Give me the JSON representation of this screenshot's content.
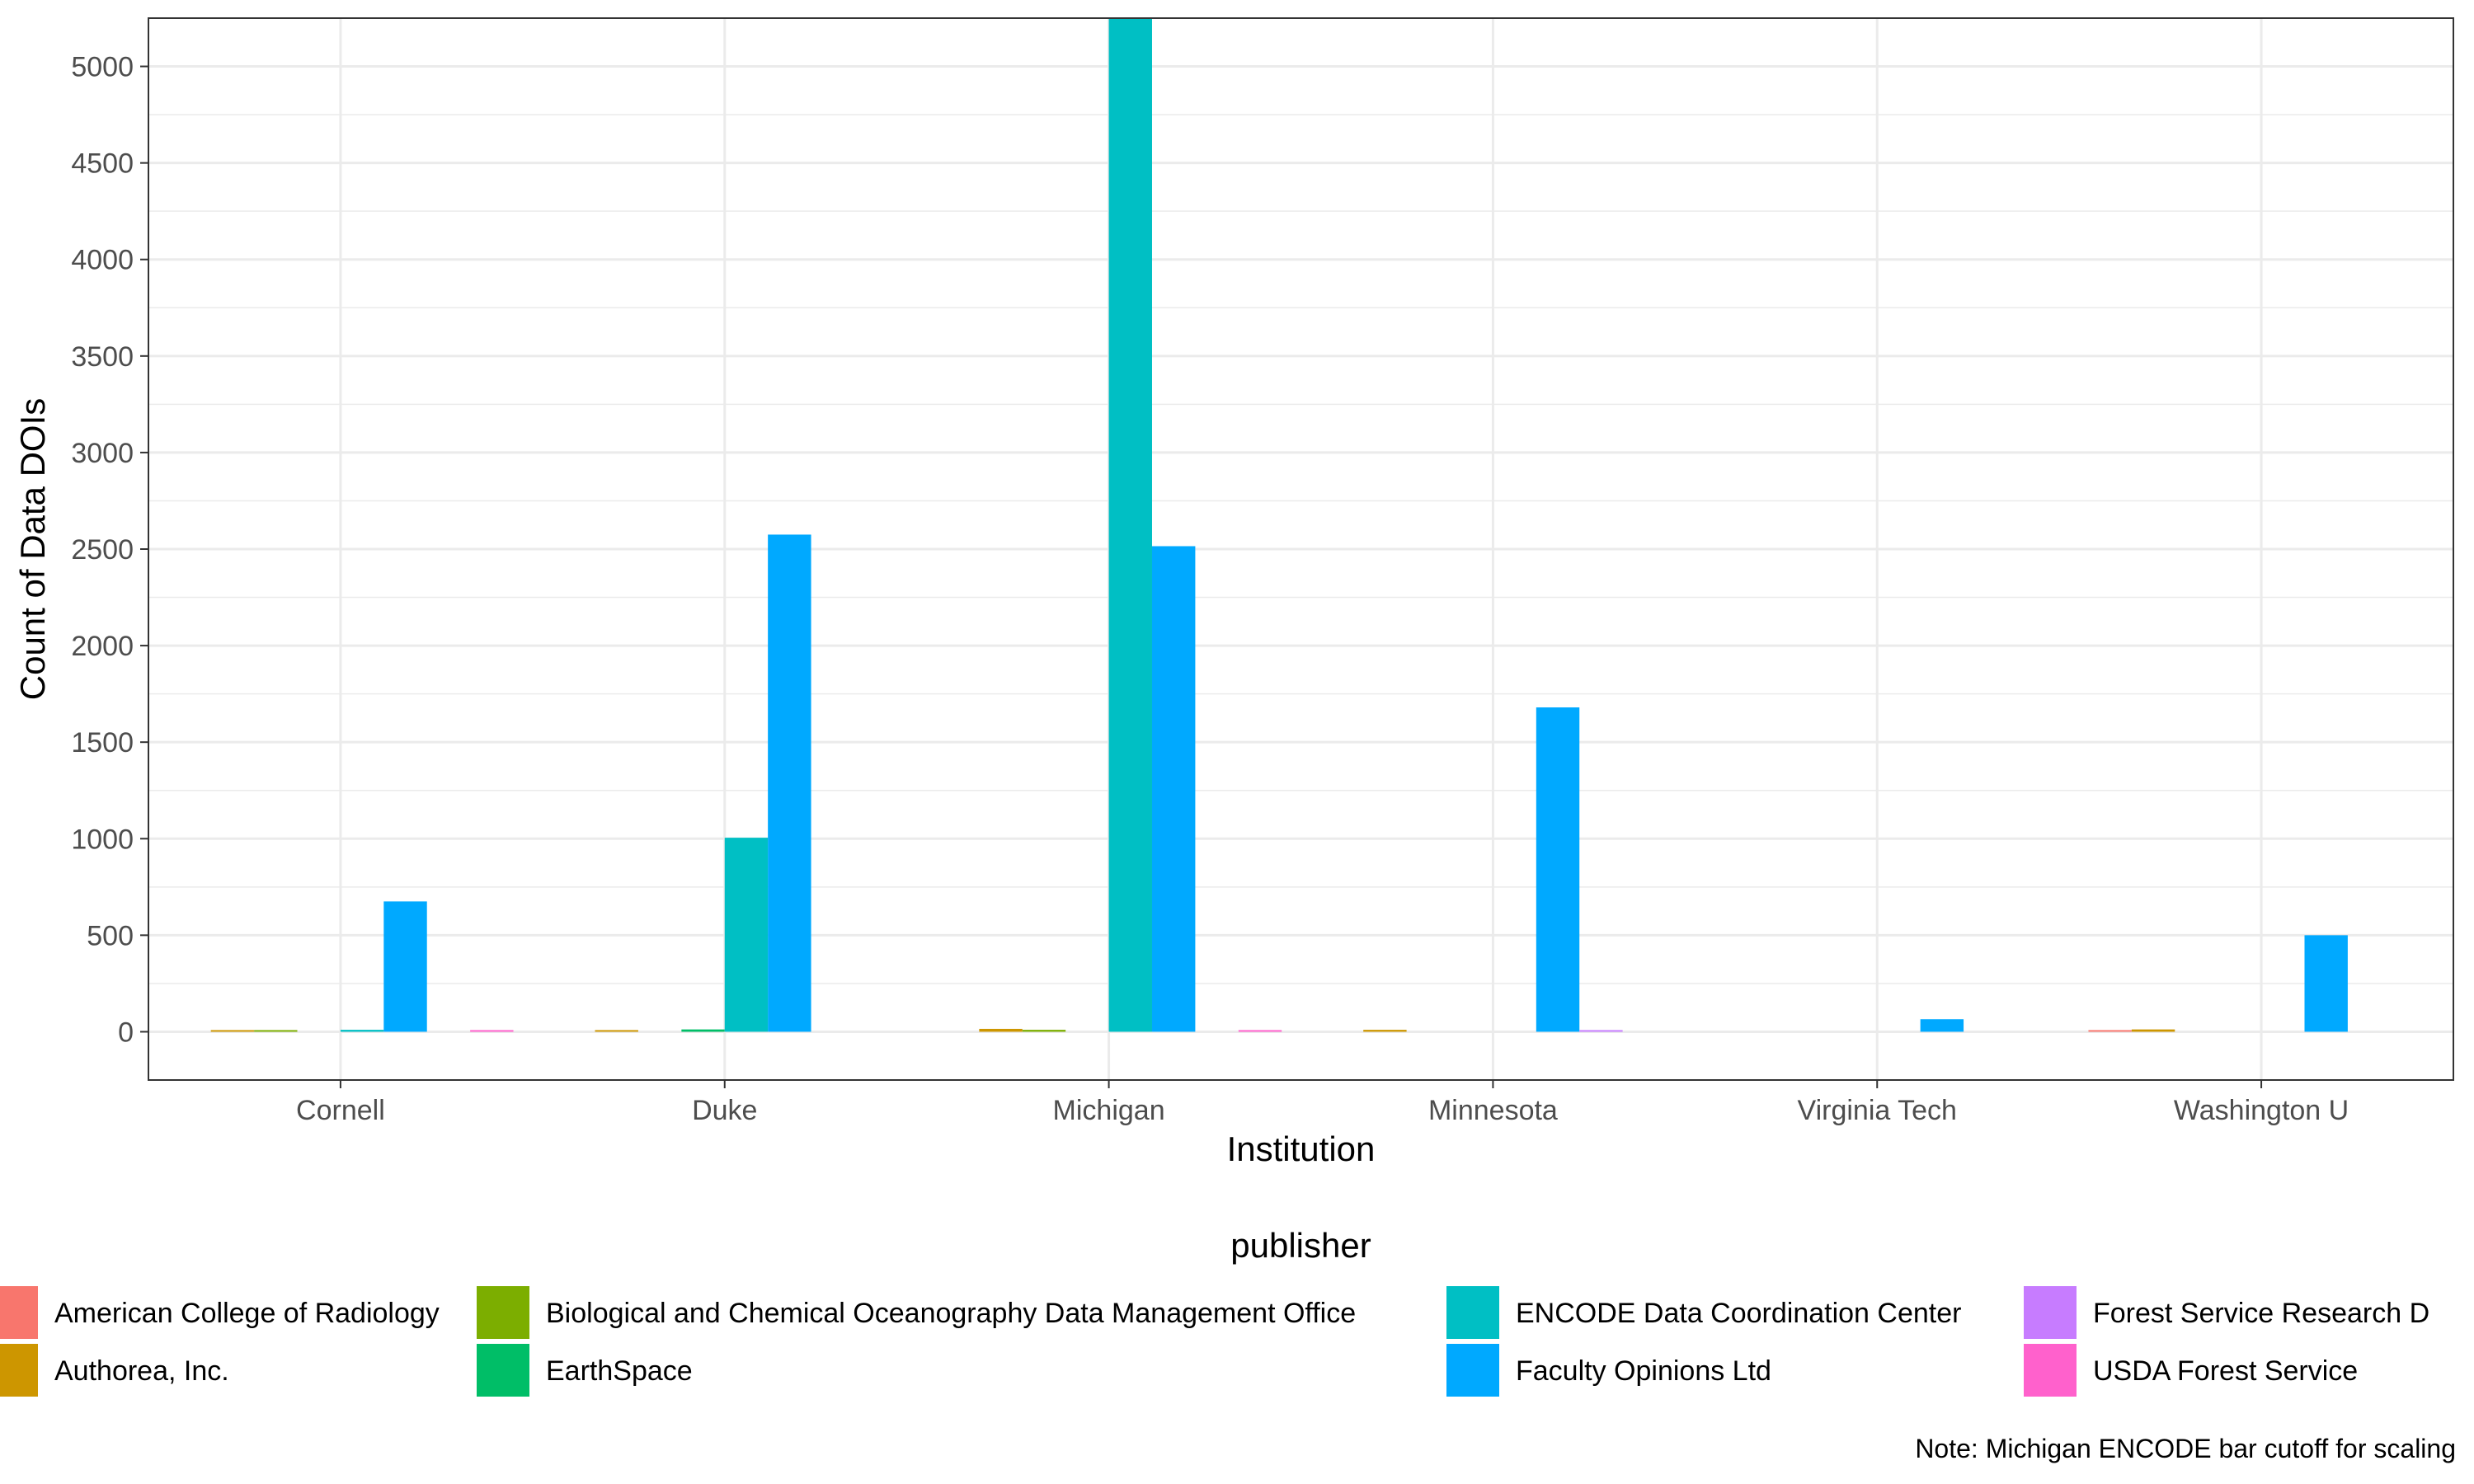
{
  "chart_data": {
    "type": "bar",
    "xlabel": "Institution",
    "ylabel": "Count of Data DOIs",
    "ylim": [
      -250,
      5250
    ],
    "yticks": [
      0,
      500,
      1000,
      1500,
      2000,
      2500,
      3000,
      3500,
      4000,
      4500,
      5000
    ],
    "grid": true,
    "legend_title": "publisher",
    "legend_position": "bottom",
    "note": "Note: Michigan ENCODE bar cutoff for scaling",
    "categories": [
      "Cornell",
      "Duke",
      "Michigan",
      "Minnesota",
      "Virginia Tech",
      "Washington U"
    ],
    "series": [
      {
        "name": "American College of Radiology",
        "color": "#F8766D",
        "values": [
          null,
          null,
          null,
          null,
          null,
          3
        ]
      },
      {
        "name": "Authorea, Inc.",
        "color": "#CD9600",
        "values": [
          8,
          6,
          15,
          10,
          null,
          12
        ]
      },
      {
        "name": "Biological and Chemical Oceanography Data Management Office",
        "color": "#7CAE00",
        "values": [
          4,
          null,
          10,
          null,
          null,
          null
        ]
      },
      {
        "name": "EarthSpace",
        "color": "#00BE67",
        "values": [
          null,
          12,
          null,
          null,
          null,
          null
        ]
      },
      {
        "name": "ENCODE Data Coordination Center",
        "color": "#00BFC4",
        "values": [
          10,
          1005,
          5250,
          null,
          null,
          null
        ]
      },
      {
        "name": "Faculty Opinions Ltd",
        "color": "#00A9FF",
        "values": [
          675,
          2575,
          2515,
          1680,
          65,
          500
        ]
      },
      {
        "name": "Forest Service Research Data Archive",
        "color": "#C77CFF",
        "values": [
          null,
          null,
          null,
          5,
          null,
          null
        ]
      },
      {
        "name": "USDA Forest Service",
        "color": "#FF61CC",
        "values": [
          3,
          null,
          3,
          null,
          null,
          null
        ]
      }
    ],
    "legend_rows": [
      [
        "American College of Radiology",
        "Biological and Chemical Oceanography Data Management Office",
        "ENCODE Data Coordination Center",
        "Forest Service Research D"
      ],
      [
        "Authorea, Inc.",
        "EarthSpace",
        "Faculty Opinions Ltd",
        "USDA Forest Service"
      ]
    ]
  }
}
